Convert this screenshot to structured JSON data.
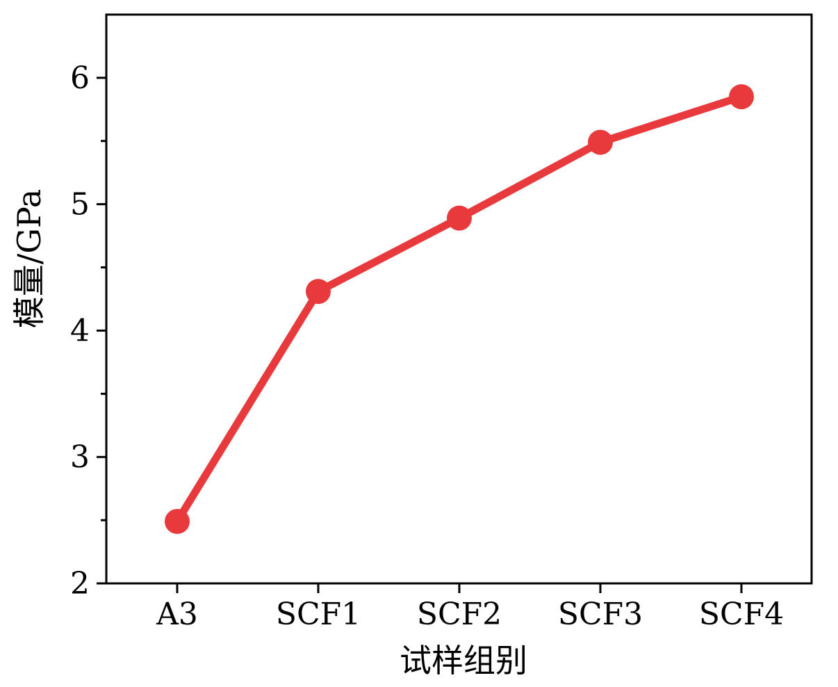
{
  "chart_data": {
    "type": "line",
    "categories": [
      "A3",
      "SCF1",
      "SCF2",
      "SCF3",
      "SCF4"
    ],
    "series": [
      {
        "values": [
          2.49,
          4.31,
          4.89,
          5.49,
          5.85
        ],
        "color": "#e8393d",
        "marker": "circle"
      }
    ],
    "title": "",
    "xlabel": "试样组别",
    "ylabel": "模量/GPa",
    "ylim": [
      2,
      6.5
    ],
    "yticks": [
      2,
      3,
      4,
      5,
      6
    ],
    "ytick_labels": [
      "2",
      "3",
      "4",
      "5",
      "6"
    ],
    "grid": false,
    "legend": "none"
  }
}
